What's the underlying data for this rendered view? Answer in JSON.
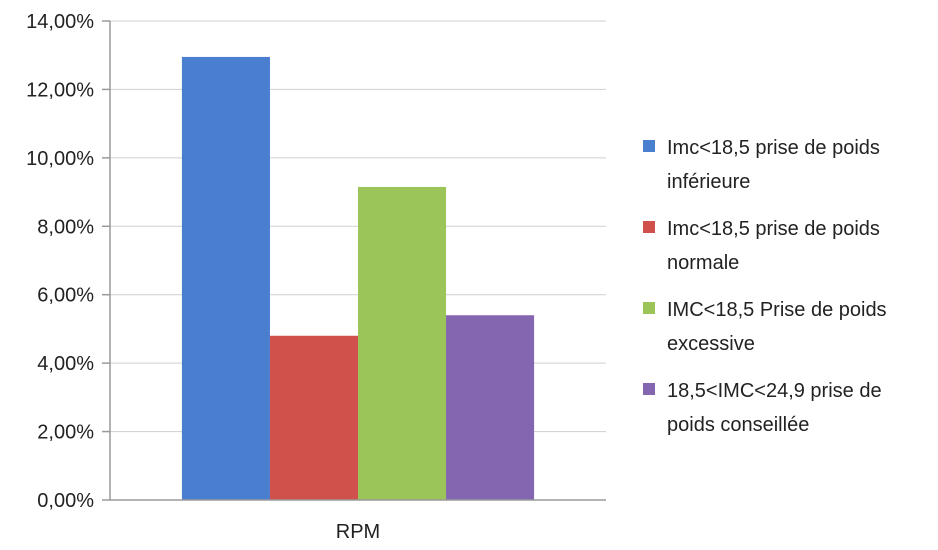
{
  "chart_data": {
    "type": "bar",
    "categories": [
      "RPM"
    ],
    "series": [
      {
        "name": "Imc<18,5 prise de poids inférieure",
        "legend_lines": [
          "Imc<18,5 prise de poids",
          "inférieure"
        ],
        "color": "#4a7fd0",
        "values": [
          12.95
        ]
      },
      {
        "name": "Imc<18,5 prise de poids normale",
        "legend_lines": [
          "Imc<18,5 prise de poids",
          "normale"
        ],
        "color": "#d0504c",
        "values": [
          4.8
        ]
      },
      {
        "name": "IMC<18,5 Prise de poids excessive",
        "legend_lines": [
          "IMC<18,5 Prise de poids",
          "excessive"
        ],
        "color": "#9cc559",
        "values": [
          9.15
        ]
      },
      {
        "name": "18,5<IMC<24,9 prise de poids conseillée",
        "legend_lines": [
          "18,5<IMC<24,9 prise de",
          "poids conseillée"
        ],
        "color": "#8466b0",
        "values": [
          5.4
        ]
      }
    ],
    "y_ticks": [
      "0,00%",
      "2,00%",
      "4,00%",
      "6,00%",
      "8,00%",
      "10,00%",
      "12,00%",
      "14,00%"
    ],
    "ylim": [
      0,
      14
    ],
    "y_unit": "%",
    "grid": true,
    "legend_position": "right"
  }
}
